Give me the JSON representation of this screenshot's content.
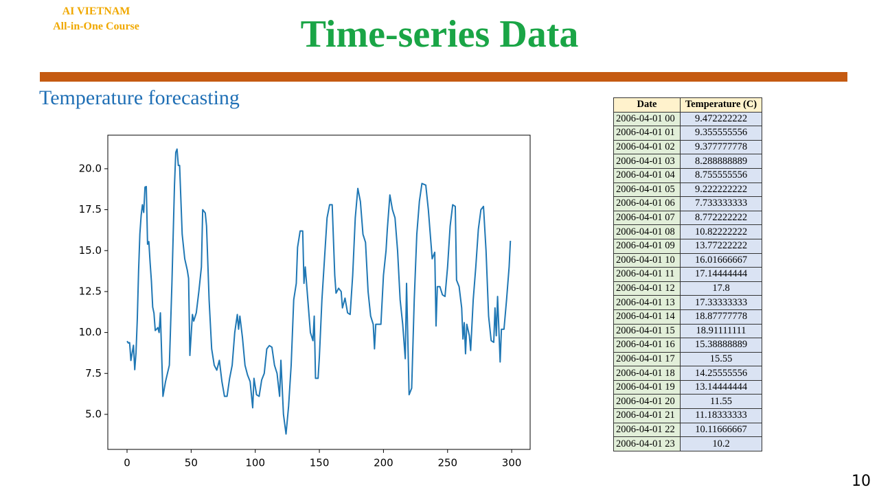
{
  "header": {
    "org": "AI VIETNAM",
    "course": "All-in-One Course"
  },
  "title": "Time-series Data",
  "subtitle": "Temperature forecasting",
  "chart_data": {
    "type": "line",
    "color": "#1f77b4",
    "x": [
      0,
      1,
      2,
      3,
      4,
      5,
      6,
      7,
      8,
      9,
      10,
      11,
      12,
      13,
      14,
      15,
      16,
      17,
      18,
      19,
      20,
      21,
      22,
      23,
      24,
      25,
      26,
      28,
      30,
      33,
      35,
      37,
      38,
      39,
      40,
      41,
      43,
      45,
      47,
      48,
      49,
      51,
      52,
      54,
      56,
      58,
      59,
      61,
      62,
      64,
      66,
      68,
      70,
      72,
      74,
      76,
      78,
      80,
      82,
      84,
      86,
      87,
      88,
      90,
      92,
      94,
      96,
      98,
      99,
      101,
      103,
      105,
      107,
      109,
      111,
      113,
      115,
      117,
      119,
      120,
      122,
      124,
      126,
      128,
      130,
      132,
      133,
      135,
      137,
      138,
      139,
      141,
      143,
      145,
      146,
      147,
      149,
      150,
      152,
      154,
      156,
      158,
      160,
      162,
      163,
      165,
      167,
      168,
      170,
      172,
      174,
      176,
      178,
      180,
      182,
      184,
      186,
      188,
      190,
      192,
      193,
      194,
      196,
      198,
      200,
      202,
      203,
      205,
      207,
      209,
      211,
      213,
      215,
      217,
      218,
      220,
      222,
      224,
      226,
      228,
      230,
      233,
      235,
      237,
      238,
      240,
      241,
      242,
      244,
      246,
      248,
      250,
      252,
      254,
      256,
      257,
      259,
      261,
      262,
      263,
      264,
      265,
      267,
      268,
      270,
      272,
      274,
      276,
      278,
      280,
      282,
      284,
      286,
      287,
      288,
      289,
      291,
      292,
      294,
      296,
      298,
      299
    ],
    "values": [
      9.47,
      9.36,
      9.38,
      8.29,
      8.76,
      9.22,
      7.73,
      8.77,
      10.82,
      13.77,
      16.02,
      17.14,
      17.8,
      17.33,
      18.88,
      18.91,
      15.39,
      15.55,
      14.26,
      13.14,
      11.55,
      11.18,
      10.12,
      10.2,
      10.3,
      10,
      11.2,
      6.1,
      7,
      8,
      13,
      19,
      21,
      21.2,
      20.2,
      20.2,
      16,
      14.5,
      13.8,
      13.3,
      8.6,
      11.1,
      10.7,
      11.2,
      12.5,
      14,
      17.5,
      17.3,
      16.5,
      12,
      9,
      8,
      7.7,
      8.3,
      7,
      6.1,
      6.1,
      7.2,
      8,
      10,
      11.1,
      10.2,
      11,
      9.7,
      8,
      7.4,
      7,
      5.4,
      7.2,
      6.2,
      6.1,
      7.1,
      7.5,
      9,
      9.2,
      9.1,
      8,
      7.5,
      6.1,
      8.3,
      5,
      3.8,
      5.5,
      8,
      12,
      13,
      15.2,
      16.2,
      16.2,
      13,
      14,
      12,
      10,
      9.5,
      11,
      7.2,
      7.2,
      8.5,
      12,
      14.5,
      17,
      17.8,
      17.8,
      13.5,
      12.4,
      12.7,
      12.5,
      11.5,
      12.1,
      11.2,
      11.1,
      13.5,
      17,
      18.8,
      18,
      16,
      15.5,
      12.5,
      11,
      10.5,
      9,
      10.5,
      10.5,
      10.5,
      13.5,
      15,
      16.3,
      18.4,
      17.5,
      17,
      15,
      12,
      10.5,
      8.4,
      13,
      6.2,
      6.6,
      12,
      16,
      18,
      19.1,
      19,
      17.5,
      15.5,
      14.5,
      14.9,
      10.4,
      12.8,
      12.8,
      12.3,
      12.2,
      14,
      16.5,
      17.8,
      17.7,
      13.2,
      12.8,
      11.5,
      9.6,
      10.6,
      8.7,
      10.5,
      9.8,
      8.9,
      12,
      14,
      16.3,
      17.5,
      17.7,
      15,
      11,
      9.5,
      9.4,
      11.5,
      9.8,
      12.2,
      8.2,
      10.2,
      10.2,
      12,
      14,
      15.6
    ],
    "xlim": [
      -15,
      314.4
    ],
    "ylim": [
      2.86,
      22.05
    ],
    "xticks": [
      0,
      50,
      100,
      150,
      200,
      250,
      300
    ],
    "yticks": [
      {
        "value": 5,
        "label": "5.0"
      },
      {
        "value": 7.5,
        "label": "7.5"
      },
      {
        "value": 10,
        "label": "10.0"
      },
      {
        "value": 12.5,
        "label": "12.5"
      },
      {
        "value": 15,
        "label": "15.0"
      },
      {
        "value": 17.5,
        "label": "17.5"
      },
      {
        "value": 20,
        "label": "20.0"
      }
    ]
  },
  "table": {
    "header": [
      "Date",
      "Temperature (C)"
    ],
    "rows": [
      [
        "2006-04-01 00",
        "9.472222222"
      ],
      [
        "2006-04-01 01",
        "9.355555556"
      ],
      [
        "2006-04-01 02",
        "9.377777778"
      ],
      [
        "2006-04-01 03",
        "8.288888889"
      ],
      [
        "2006-04-01 04",
        "8.755555556"
      ],
      [
        "2006-04-01 05",
        "9.222222222"
      ],
      [
        "2006-04-01 06",
        "7.733333333"
      ],
      [
        "2006-04-01 07",
        "8.772222222"
      ],
      [
        "2006-04-01 08",
        "10.82222222"
      ],
      [
        "2006-04-01 09",
        "13.77222222"
      ],
      [
        "2006-04-01 10",
        "16.01666667"
      ],
      [
        "2006-04-01 11",
        "17.14444444"
      ],
      [
        "2006-04-01 12",
        "17.8"
      ],
      [
        "2006-04-01 13",
        "17.33333333"
      ],
      [
        "2006-04-01 14",
        "18.87777778"
      ],
      [
        "2006-04-01 15",
        "18.91111111"
      ],
      [
        "2006-04-01 16",
        "15.38888889"
      ],
      [
        "2006-04-01 17",
        "15.55"
      ],
      [
        "2006-04-01 18",
        "14.25555556"
      ],
      [
        "2006-04-01 19",
        "13.14444444"
      ],
      [
        "2006-04-01 20",
        "11.55"
      ],
      [
        "2006-04-01 21",
        "11.18333333"
      ],
      [
        "2006-04-01 22",
        "10.11666667"
      ],
      [
        "2006-04-01 23",
        "10.2"
      ]
    ]
  },
  "page_number": "10"
}
